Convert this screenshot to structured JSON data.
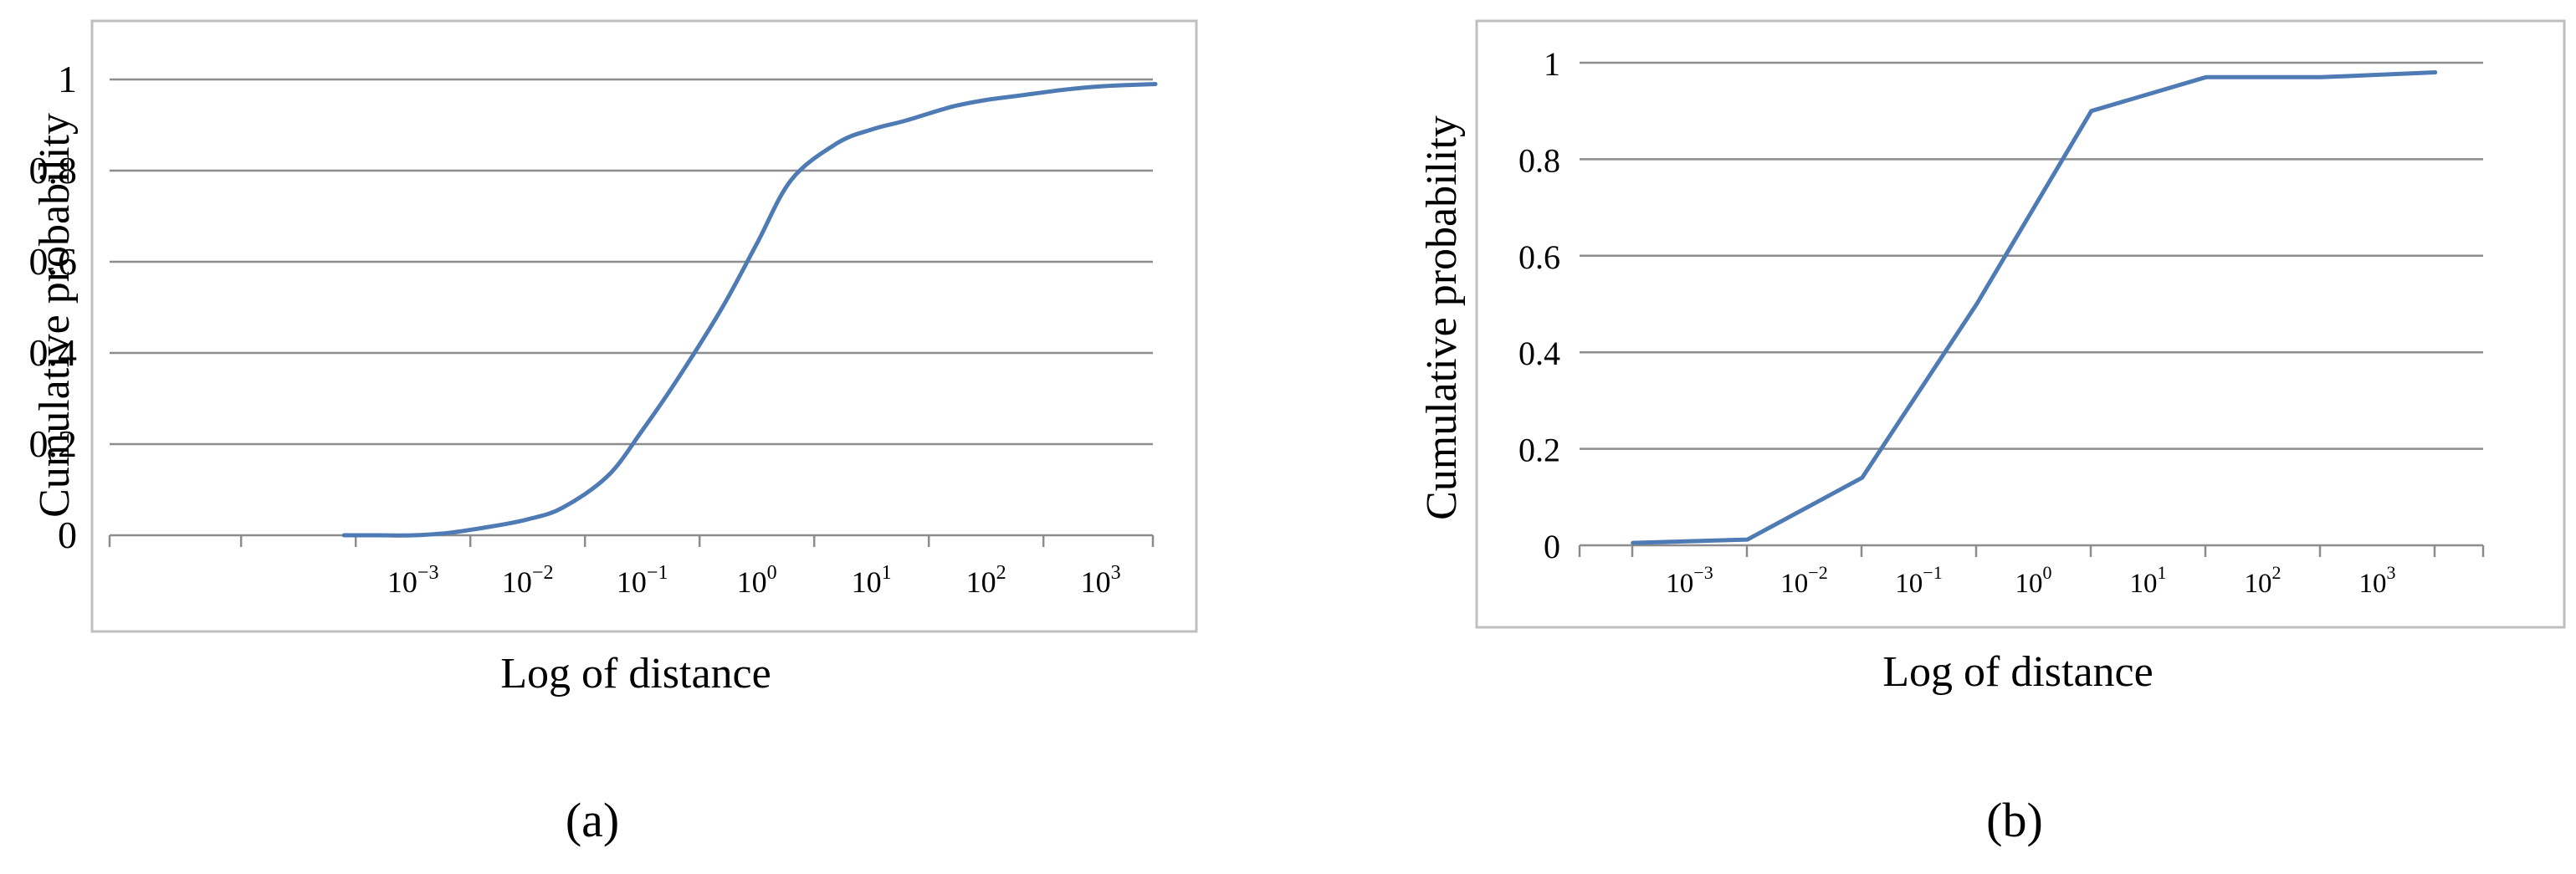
{
  "panel_labels": [
    "(a)",
    "(b)"
  ],
  "chart_data": [
    {
      "type": "line",
      "title": "",
      "xlabel": "Log of distance",
      "ylabel": "Cumulative probability",
      "xscale": "log",
      "x_tick_labels": [
        "10−3",
        "10−2",
        "10−1",
        "100",
        "101",
        "102",
        "103"
      ],
      "x_ticks": [
        0.001,
        0.01,
        0.1,
        1,
        10,
        100,
        1000
      ],
      "y_tick_labels": [
        "0",
        "0.2",
        "0.4",
        "0.6",
        "0.8",
        "1"
      ],
      "ylim": [
        0,
        1
      ],
      "grid": "horizontal",
      "smooth": true,
      "color": "#4f7bb5",
      "x": [
        0.00025,
        0.0005,
        0.001,
        0.002,
        0.005,
        0.01,
        0.02,
        0.05,
        0.1,
        0.2,
        0.5,
        1,
        2,
        5,
        10,
        20,
        50,
        100,
        200,
        500,
        1000,
        3000
      ],
      "y": [
        0.0,
        0.0,
        0.0,
        0.005,
        0.02,
        0.035,
        0.06,
        0.13,
        0.23,
        0.34,
        0.5,
        0.64,
        0.78,
        0.86,
        0.89,
        0.91,
        0.94,
        0.955,
        0.965,
        0.978,
        0.985,
        0.99
      ]
    },
    {
      "type": "line",
      "title": "",
      "xlabel": "Log of distance",
      "ylabel": "Cumulative probability",
      "xscale": "log",
      "x_tick_labels": [
        "10−3",
        "10−2",
        "10−1",
        "100",
        "101",
        "102",
        "103"
      ],
      "x_ticks": [
        0.001,
        0.01,
        0.1,
        1,
        10,
        100,
        1000
      ],
      "y_tick_labels": [
        "0",
        "0.2",
        "0.4",
        "0.6",
        "0.8",
        "1"
      ],
      "ylim": [
        0,
        1
      ],
      "grid": "horizontal",
      "smooth": false,
      "color": "#4f7bb5",
      "x": [
        0.00032,
        0.0032,
        0.032,
        0.32,
        3.2,
        32,
        320,
        3200
      ],
      "y": [
        0.005,
        0.012,
        0.14,
        0.5,
        0.9,
        0.97,
        0.97,
        0.98
      ]
    }
  ]
}
